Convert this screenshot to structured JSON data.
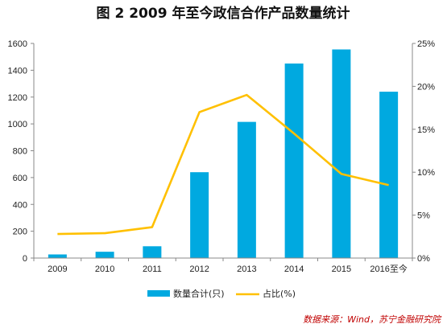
{
  "chart_data": {
    "type": "bar",
    "title": "图 2  2009 年至今政信合作产品数量统计",
    "categories": [
      "2009",
      "2010",
      "2011",
      "2012",
      "2013",
      "2014",
      "2015",
      "2016至今"
    ],
    "series": [
      {
        "name": "数量合计(只)",
        "type": "bar",
        "axis": "left",
        "color": "#00a9e0",
        "values": [
          27,
          47,
          88,
          640,
          1015,
          1450,
          1555,
          1240
        ]
      },
      {
        "name": "占比(%)",
        "type": "line",
        "axis": "right",
        "color": "#ffc000",
        "values": [
          2.8,
          2.9,
          3.6,
          17.0,
          19.0,
          14.5,
          9.8,
          8.5
        ]
      }
    ],
    "y_left": {
      "range": [
        0,
        1600
      ],
      "ticks": [
        "0",
        "200",
        "400",
        "600",
        "800",
        "1000",
        "1200",
        "1400",
        "1600"
      ]
    },
    "y_right": {
      "range": [
        0,
        25
      ],
      "ticks": [
        "0%",
        "5%",
        "10%",
        "15%",
        "20%",
        "25%"
      ]
    },
    "grid": false,
    "legend_position": "bottom",
    "source": "数据来源：Wind，苏宁金融研究院",
    "source_color": "#c00000"
  }
}
